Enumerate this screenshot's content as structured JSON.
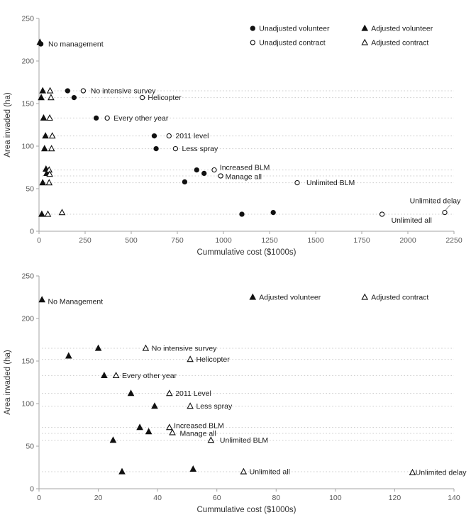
{
  "colors": {
    "marker": "#111111",
    "marker_open_fill": "#ffffff",
    "grid": "#cccccc",
    "axis": "#a6a6a6",
    "tick_text": "#595959",
    "label_text": "#1a1a1a"
  },
  "chart_data": [
    {
      "type": "scatter",
      "title": "",
      "xlabel": "Cummulative cost ($1000s)",
      "ylabel": "Area invaded (ha)",
      "xlim": [
        0,
        2250
      ],
      "xticks": [
        0,
        250,
        500,
        750,
        1000,
        1250,
        1500,
        1750,
        2000,
        2250
      ],
      "ylim": [
        0,
        250
      ],
      "yticks": [
        0,
        50,
        100,
        150,
        200,
        250
      ],
      "legend": [
        {
          "label": "Unadjusted volunteer",
          "marker": "circle-filled"
        },
        {
          "label": "Adjusted volunteer",
          "marker": "triangle-filled"
        },
        {
          "label": "Unadjusted contract",
          "marker": "circle-open"
        },
        {
          "label": "Adjusted contract",
          "marker": "triangle-open"
        }
      ],
      "gridlines_y": [
        165,
        157,
        133,
        112,
        97,
        72,
        65,
        57,
        20
      ],
      "series": [
        {
          "name": "Unadjusted volunteer",
          "marker": "circle-filled",
          "points": [
            [
              10,
              220
            ],
            [
              155,
              165
            ],
            [
              190,
              157
            ],
            [
              310,
              133
            ],
            [
              625,
              112
            ],
            [
              635,
              97
            ],
            [
              855,
              72
            ],
            [
              895,
              68
            ],
            [
              790,
              58
            ],
            [
              1100,
              20
            ],
            [
              1270,
              22
            ]
          ]
        },
        {
          "name": "Unadjusted contract",
          "marker": "circle-open",
          "points": [
            [
              240,
              165
            ],
            [
              560,
              157
            ],
            [
              370,
              133
            ],
            [
              705,
              112
            ],
            [
              740,
              97
            ],
            [
              950,
              72
            ],
            [
              985,
              65
            ],
            [
              1400,
              57
            ],
            [
              1860,
              20
            ],
            [
              2200,
              22
            ]
          ]
        },
        {
          "name": "Adjusted volunteer",
          "marker": "triangle-filled",
          "points": [
            [
              5,
              222
            ],
            [
              20,
              165
            ],
            [
              12,
              157
            ],
            [
              25,
              133
            ],
            [
              35,
              112
            ],
            [
              30,
              97
            ],
            [
              38,
              73
            ],
            [
              42,
              68
            ],
            [
              20,
              57
            ],
            [
              15,
              20
            ]
          ]
        },
        {
          "name": "Adjusted contract",
          "marker": "triangle-open",
          "points": [
            [
              60,
              165
            ],
            [
              65,
              157
            ],
            [
              58,
              133
            ],
            [
              72,
              112
            ],
            [
              68,
              97
            ],
            [
              55,
              72
            ],
            [
              58,
              67
            ],
            [
              55,
              57
            ],
            [
              48,
              20
            ],
            [
              125,
              22
            ]
          ]
        }
      ],
      "annotations": [
        {
          "text": "No management",
          "x": 50,
          "y": 220
        },
        {
          "text": "No intensive survey",
          "x": 280,
          "y": 165
        },
        {
          "text": "Helicopter",
          "x": 590,
          "y": 157
        },
        {
          "text": "Every other year",
          "x": 405,
          "y": 133
        },
        {
          "text": "2011 level",
          "x": 740,
          "y": 112
        },
        {
          "text": "Less spray",
          "x": 775,
          "y": 97
        },
        {
          "text": "Increased BLM",
          "x": 980,
          "y": 75
        },
        {
          "text": "Manage all",
          "x": 1010,
          "y": 64
        },
        {
          "text": "Unlimited BLM",
          "x": 1450,
          "y": 57
        },
        {
          "text": "Unlimited delay",
          "x": 2010,
          "y": 36,
          "leader": [
            2230,
            31,
            2205,
            25
          ]
        },
        {
          "text": "Unlimited all",
          "x": 1910,
          "y": 13
        }
      ]
    },
    {
      "type": "scatter",
      "title": "",
      "xlabel": "Cummulative cost ($1000s)",
      "ylabel": "Area invaded (ha)",
      "xlim": [
        0,
        140
      ],
      "xticks": [
        0,
        20,
        40,
        60,
        80,
        100,
        120,
        140
      ],
      "ylim": [
        0,
        250
      ],
      "yticks": [
        0,
        50,
        100,
        150,
        200,
        250
      ],
      "legend": [
        {
          "label": "Adjusted volunteer",
          "marker": "triangle-filled"
        },
        {
          "label": "Adjusted contract",
          "marker": "triangle-open"
        }
      ],
      "gridlines_y": [
        165,
        152,
        133,
        112,
        97,
        72,
        65,
        57,
        20
      ],
      "series": [
        {
          "name": "Adjusted volunteer",
          "marker": "triangle-filled",
          "points": [
            [
              1,
              222
            ],
            [
              20,
              165
            ],
            [
              10,
              156
            ],
            [
              22,
              133
            ],
            [
              31,
              112
            ],
            [
              39,
              97
            ],
            [
              34,
              72
            ],
            [
              37,
              67
            ],
            [
              25,
              57
            ],
            [
              28,
              20
            ],
            [
              52,
              23
            ]
          ]
        },
        {
          "name": "Adjusted contract",
          "marker": "triangle-open",
          "points": [
            [
              36,
              165
            ],
            [
              51,
              152
            ],
            [
              26,
              133
            ],
            [
              44,
              112
            ],
            [
              51,
              97
            ],
            [
              44,
              72
            ],
            [
              45,
              66
            ],
            [
              58,
              57
            ],
            [
              69,
              20
            ],
            [
              126,
              19
            ]
          ]
        }
      ],
      "annotations": [
        {
          "text": "No Management",
          "x": 3,
          "y": 220
        },
        {
          "text": "No intensive survey",
          "x": 38,
          "y": 165
        },
        {
          "text": "Helicopter",
          "x": 53,
          "y": 152
        },
        {
          "text": "Every other year",
          "x": 28,
          "y": 133
        },
        {
          "text": "2011 Level",
          "x": 46,
          "y": 112
        },
        {
          "text": "Less spray",
          "x": 53,
          "y": 97
        },
        {
          "text": "Increased BLM",
          "x": 45.5,
          "y": 74
        },
        {
          "text": "Manage all",
          "x": 47.5,
          "y": 65
        },
        {
          "text": "Unlimited BLM",
          "x": 61,
          "y": 57
        },
        {
          "text": "Unlimited all",
          "x": 71,
          "y": 20
        },
        {
          "text": "Unlimited delay",
          "x": 127,
          "y": 19
        }
      ]
    }
  ]
}
